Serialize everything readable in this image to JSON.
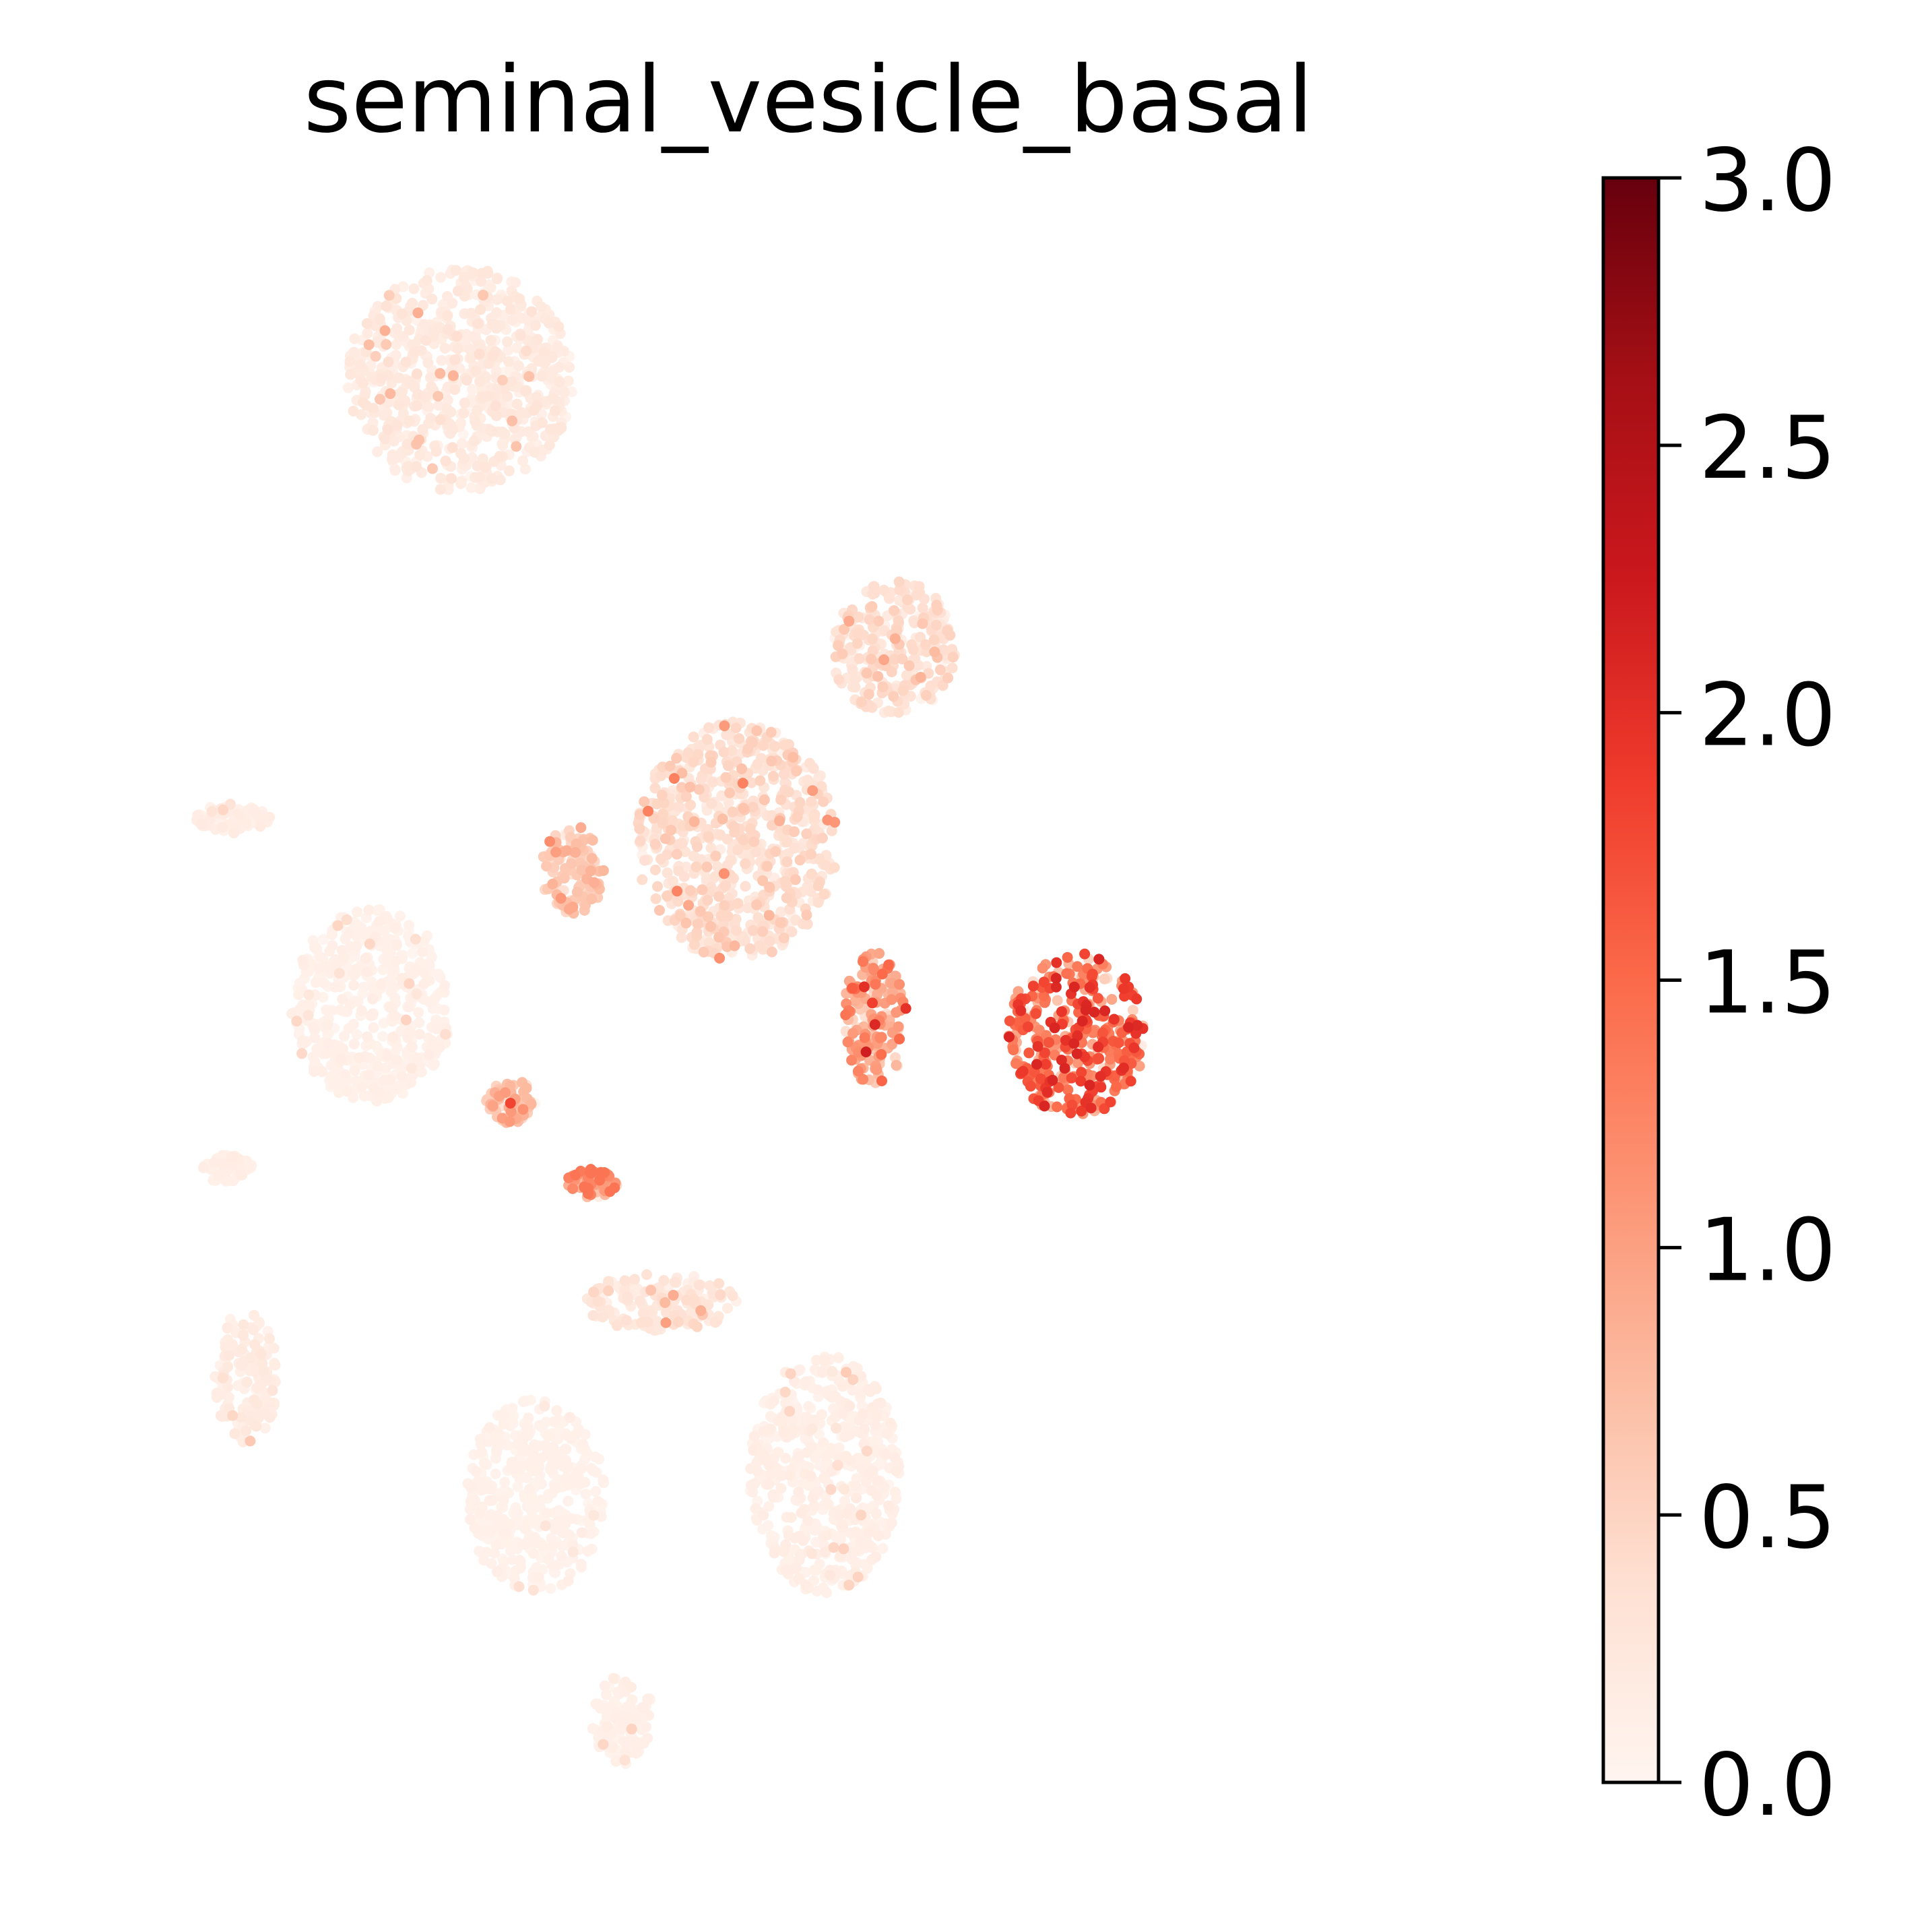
{
  "chart_data": {
    "type": "scatter",
    "title": "seminal_vesicle_basal",
    "xlabel": "",
    "ylabel": "",
    "grid": false,
    "axes_visible": false,
    "colormap": "Reds",
    "colormap_stops": [
      "#fff5f0",
      "#fee0d2",
      "#fcbba1",
      "#fc9272",
      "#fb6a4a",
      "#ef3b2c",
      "#cb181d",
      "#a50f15",
      "#67000d"
    ],
    "colorbar": {
      "range": [
        0.0,
        3.0
      ],
      "ticks": [
        0.0,
        0.5,
        1.0,
        1.5,
        2.0,
        2.5,
        3.0
      ],
      "tick_labels": [
        "0.0",
        "0.5",
        "1.0",
        "1.5",
        "2.0",
        "2.5",
        "3.0"
      ]
    },
    "clusters": [
      {
        "center": [
          4.6,
          18.8
        ],
        "spread": [
          1.8,
          1.5
        ],
        "mean_value": 0.18,
        "max_value": 0.9
      },
      {
        "center": [
          3.2,
          10.4
        ],
        "spread": [
          1.3,
          1.3
        ],
        "mean_value": 0.08,
        "max_value": 0.5
      },
      {
        "center": [
          1.0,
          12.9
        ],
        "spread": [
          0.6,
          0.2
        ],
        "mean_value": 0.12,
        "max_value": 0.5
      },
      {
        "center": [
          0.9,
          8.2
        ],
        "spread": [
          0.4,
          0.2
        ],
        "mean_value": 0.1,
        "max_value": 0.3
      },
      {
        "center": [
          1.2,
          5.4
        ],
        "spread": [
          0.5,
          0.9
        ],
        "mean_value": 0.15,
        "max_value": 0.7
      },
      {
        "center": [
          6.4,
          12.2
        ],
        "spread": [
          0.5,
          0.6
        ],
        "mean_value": 0.55,
        "max_value": 1.2
      },
      {
        "center": [
          9.0,
          12.6
        ],
        "spread": [
          1.6,
          1.6
        ],
        "mean_value": 0.35,
        "max_value": 1.3
      },
      {
        "center": [
          11.5,
          15.2
        ],
        "spread": [
          1.0,
          0.9
        ],
        "mean_value": 0.35,
        "max_value": 1.0
      },
      {
        "center": [
          14.4,
          10.0
        ],
        "spread": [
          1.1,
          1.1
        ],
        "mean_value": 1.35,
        "max_value": 2.1
      },
      {
        "center": [
          11.2,
          10.2
        ],
        "spread": [
          0.5,
          0.9
        ],
        "mean_value": 0.9,
        "max_value": 2.2
      },
      {
        "center": [
          6.7,
          8.0
        ],
        "spread": [
          0.4,
          0.2
        ],
        "mean_value": 1.05,
        "max_value": 1.4
      },
      {
        "center": [
          5.4,
          9.1
        ],
        "spread": [
          0.4,
          0.3
        ],
        "mean_value": 0.6,
        "max_value": 1.8
      },
      {
        "center": [
          5.8,
          3.8
        ],
        "spread": [
          1.1,
          1.3
        ],
        "mean_value": 0.06,
        "max_value": 0.4
      },
      {
        "center": [
          10.4,
          4.1
        ],
        "spread": [
          1.2,
          1.6
        ],
        "mean_value": 0.1,
        "max_value": 0.6
      },
      {
        "center": [
          7.2,
          0.8
        ],
        "spread": [
          0.5,
          0.6
        ],
        "mean_value": 0.08,
        "max_value": 0.6
      },
      {
        "center": [
          7.8,
          6.4
        ],
        "spread": [
          1.2,
          0.4
        ],
        "mean_value": 0.25,
        "max_value": 1.0
      }
    ]
  }
}
